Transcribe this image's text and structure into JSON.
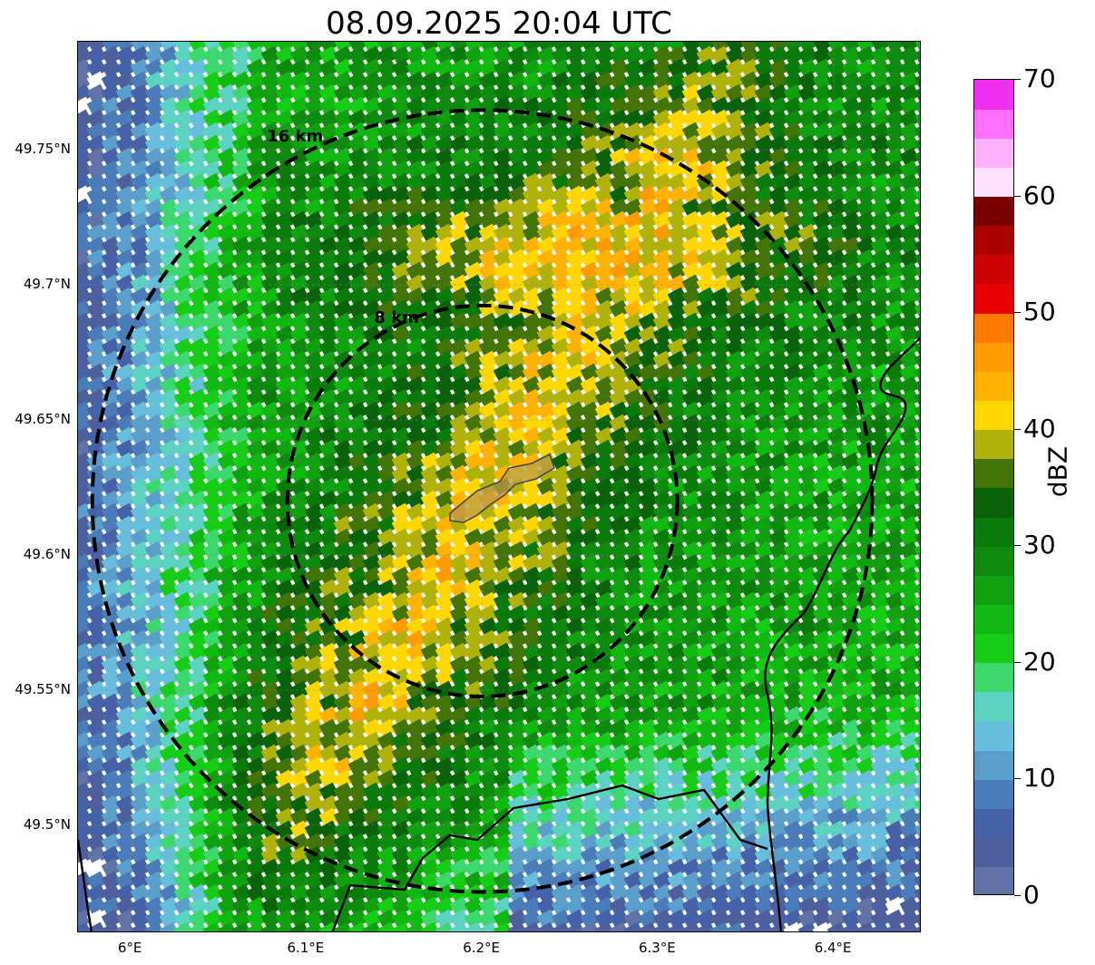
{
  "title": "08.09.2025 20:04 UTC",
  "map": {
    "center_lon": 6.2,
    "center_lat": 49.62,
    "lon_range": [
      5.97,
      6.45
    ],
    "lat_range": [
      49.46,
      49.79
    ],
    "lat_labels": [
      {
        "lat": 49.75,
        "text": "49.75°N"
      },
      {
        "lat": 49.7,
        "text": "49.7°N"
      },
      {
        "lat": 49.65,
        "text": "49.65°N"
      },
      {
        "lat": 49.6,
        "text": "49.6°N"
      },
      {
        "lat": 49.55,
        "text": "49.55°N"
      },
      {
        "lat": 49.5,
        "text": "49.5°N"
      }
    ],
    "lon_labels": [
      {
        "lon": 6.0,
        "text": "6°E"
      },
      {
        "lon": 6.1,
        "text": "6.1°E"
      },
      {
        "lon": 6.2,
        "text": "6.2°E"
      },
      {
        "lon": 6.3,
        "text": "6.3°E"
      },
      {
        "lon": 6.4,
        "text": "6.4°E"
      }
    ],
    "range_rings": [
      {
        "radius_km": 8,
        "label": "8 km"
      },
      {
        "radius_km": 16,
        "label": "16 km"
      }
    ],
    "core_axis_bearing_deg": 30,
    "city_outline_color": "#b89a4a"
  },
  "colorbar": {
    "label": "dBZ",
    "min": 0,
    "max": 70,
    "ticks": [
      {
        "value": 0,
        "text": "0"
      },
      {
        "value": 10,
        "text": "10"
      },
      {
        "value": 20,
        "text": "20"
      },
      {
        "value": 30,
        "text": "30"
      },
      {
        "value": 40,
        "text": "40"
      },
      {
        "value": 50,
        "text": "50"
      },
      {
        "value": 60,
        "text": "60"
      },
      {
        "value": 70,
        "text": "70"
      }
    ],
    "colors": [
      "#6272a6",
      "#4e5f9e",
      "#4562a8",
      "#4b7cba",
      "#5a9fcc",
      "#67bddc",
      "#5cd2c2",
      "#3cd86e",
      "#16cc16",
      "#12b812",
      "#10a010",
      "#0e8a0e",
      "#0a7a0a",
      "#0a620a",
      "#437407",
      "#b0b20a",
      "#ffd700",
      "#ffb300",
      "#ff9a00",
      "#ff7b00",
      "#e80000",
      "#cc0000",
      "#aa0000",
      "#7a0000",
      "#ffe0ff",
      "#ffb0ff",
      "#ff70ff",
      "#f030f0"
    ]
  }
}
